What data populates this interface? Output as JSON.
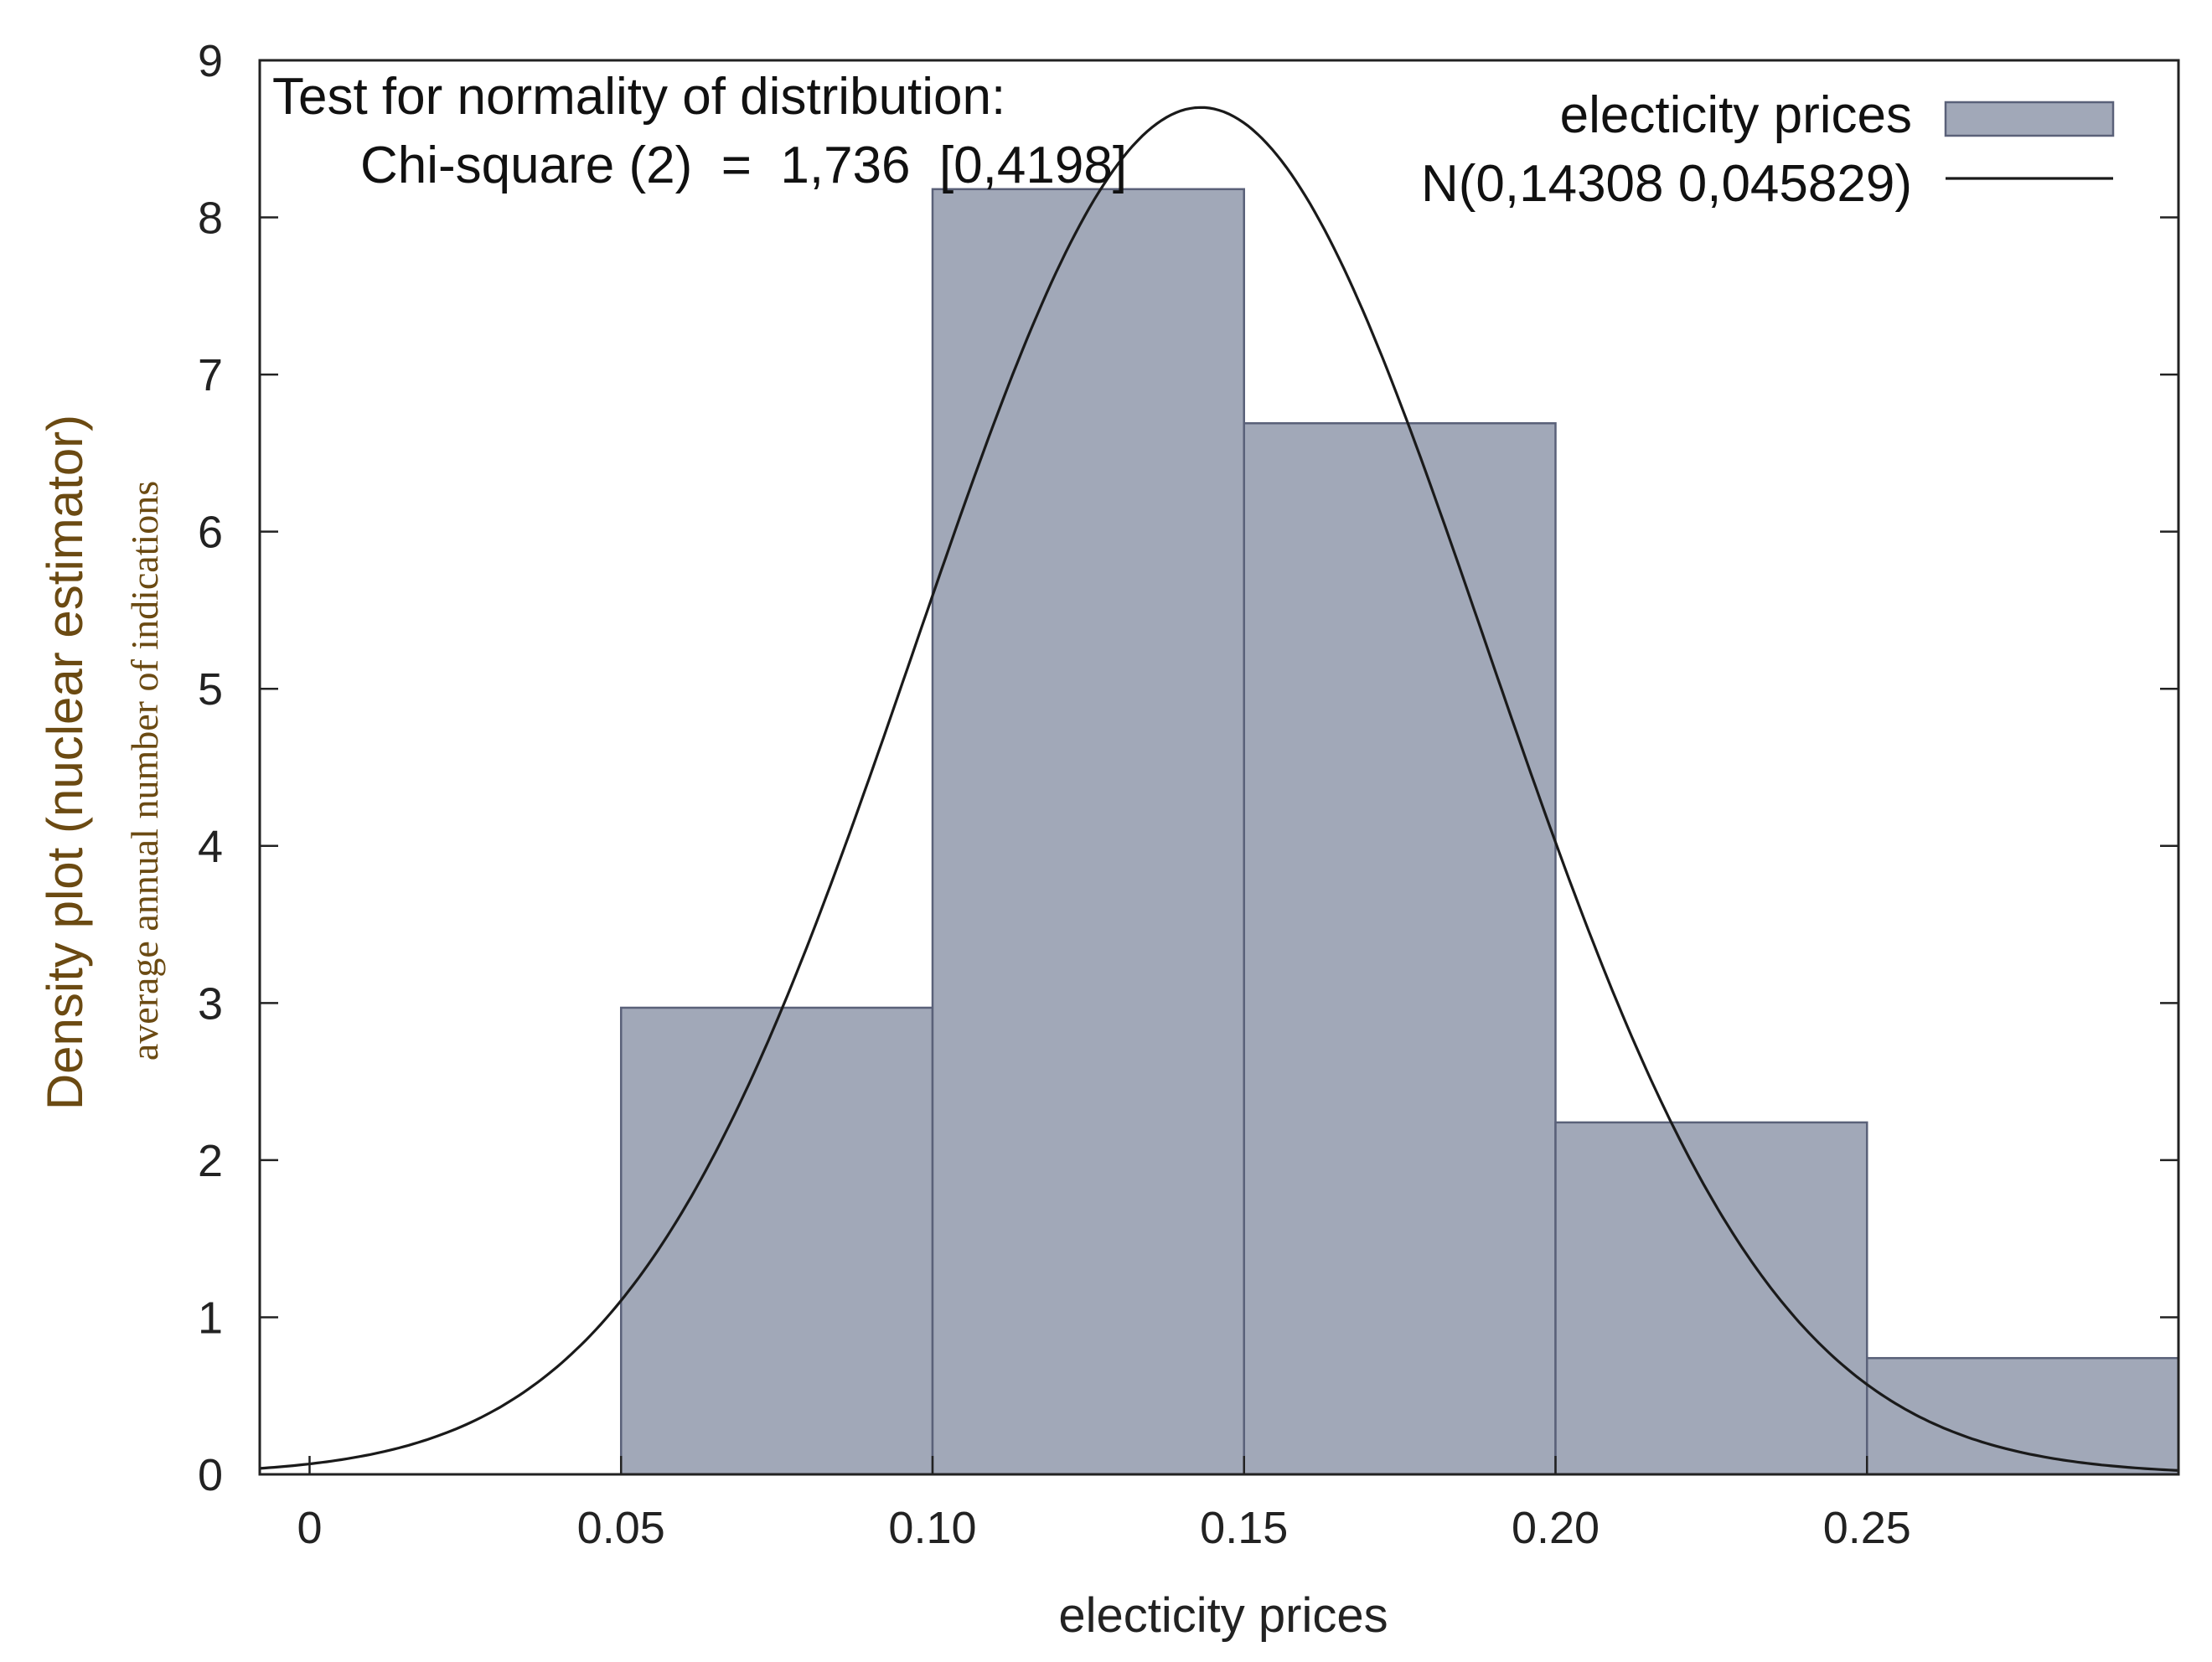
{
  "chart_data": {
    "type": "bar",
    "subtype": "histogram",
    "xlabel": "electicity prices",
    "ylabel": "Density plot (nuclear estimator)",
    "ylabel_secondary": "average annual number of indications",
    "xlim": [
      -0.008,
      0.3
    ],
    "ylim": [
      0,
      9
    ],
    "x_ticks": [
      {
        "value": 0,
        "label": "0"
      },
      {
        "value": 0.05,
        "label": "0.05"
      },
      {
        "value": 0.1,
        "label": "0.10"
      },
      {
        "value": 0.15,
        "label": "0.15"
      },
      {
        "value": 0.2,
        "label": "0.20"
      },
      {
        "value": 0.25,
        "label": "0.25"
      }
    ],
    "y_ticks": [
      {
        "value": 0,
        "label": "0"
      },
      {
        "value": 1,
        "label": "1"
      },
      {
        "value": 2,
        "label": "2"
      },
      {
        "value": 3,
        "label": "3"
      },
      {
        "value": 4,
        "label": "4"
      },
      {
        "value": 5,
        "label": "5"
      },
      {
        "value": 6,
        "label": "6"
      },
      {
        "value": 7,
        "label": "7"
      },
      {
        "value": 8,
        "label": "8"
      },
      {
        "value": 9,
        "label": "9"
      }
    ],
    "bins": [
      {
        "x0": 0.05,
        "x1": 0.1,
        "value": 2.97
      },
      {
        "x0": 0.1,
        "x1": 0.15,
        "value": 8.18
      },
      {
        "x0": 0.15,
        "x1": 0.2,
        "value": 6.69
      },
      {
        "x0": 0.2,
        "x1": 0.25,
        "value": 2.24
      },
      {
        "x0": 0.25,
        "x1": 0.3,
        "value": 0.74
      }
    ],
    "normal_curve": {
      "mean": 0.14308,
      "sd": 0.045829,
      "peak": 8.7
    },
    "legend": {
      "position": "top-right",
      "items": [
        {
          "label": "electicity prices",
          "kind": "bar"
        },
        {
          "label": "N(0,14308 0,045829)",
          "kind": "line"
        }
      ]
    },
    "annotation": {
      "position": "top-left",
      "line1": "Test for normality of distribution:",
      "line2": "Chi-square (2)  =  1,736  [0,4198]"
    },
    "colors": {
      "bar_fill": "#a1a8b8",
      "bar_stroke": "#5a6179",
      "curve": "#1a1a1a",
      "axis": "#222222"
    }
  }
}
